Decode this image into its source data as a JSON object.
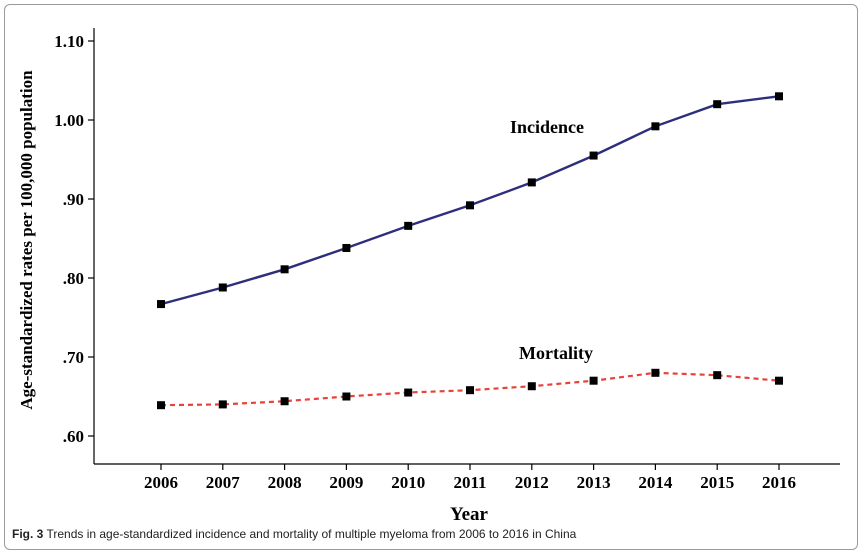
{
  "caption": {
    "label": "Fig. 3",
    "text": " Trends in age-standardized incidence and mortality of multiple myeloma from 2006 to 2016 in China"
  },
  "chart_data": {
    "type": "line",
    "xlabel": "Year",
    "ylabel": "Age-standardized rates per 100,000 population",
    "x": [
      2006,
      2007,
      2008,
      2009,
      2010,
      2011,
      2012,
      2013,
      2014,
      2015,
      2016
    ],
    "x_tick_labels": [
      "2006",
      "2007",
      "2008",
      "2009",
      "2010",
      "2011",
      "2012",
      "2013",
      "2014",
      "2015",
      "2016"
    ],
    "y_ticks": [
      0.6,
      0.7,
      0.8,
      0.9,
      1.0,
      1.1
    ],
    "y_tick_labels": [
      ".60",
      ".70",
      ".80",
      ".90",
      "1.00",
      "1.10"
    ],
    "ylim": [
      0.6,
      1.1
    ],
    "grid": false,
    "series": [
      {
        "name": "Incidence",
        "color": "#2e2f7c",
        "line_style": "solid",
        "marker": "square",
        "values": [
          0.767,
          0.788,
          0.811,
          0.838,
          0.866,
          0.892,
          0.921,
          0.955,
          0.992,
          1.02,
          1.03
        ]
      },
      {
        "name": "Mortality",
        "color": "#e8433b",
        "line_style": "dashed",
        "marker": "square",
        "values": [
          0.639,
          0.64,
          0.644,
          0.65,
          0.655,
          0.658,
          0.663,
          0.67,
          0.68,
          0.677,
          0.67
        ]
      }
    ]
  }
}
